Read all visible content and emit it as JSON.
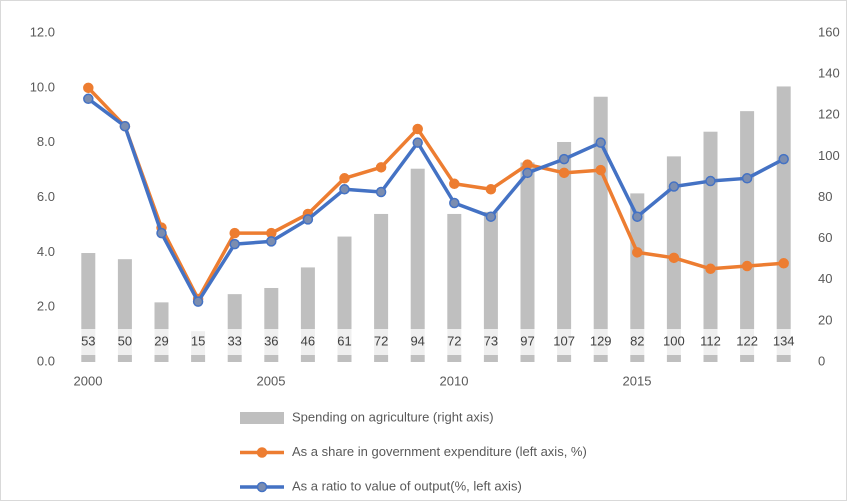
{
  "chart_data": {
    "type": "combo",
    "categories": [
      "2000",
      null,
      null,
      null,
      null,
      "2005",
      null,
      null,
      null,
      null,
      "2010",
      null,
      null,
      null,
      null,
      "2015",
      null,
      null,
      null,
      null
    ],
    "series": [
      {
        "name": "Spending on agriculture (right axis)",
        "type": "bar",
        "axis": "y2",
        "color": "#bfbfbf",
        "values": [
          53,
          50,
          29,
          15,
          33,
          36,
          46,
          61,
          72,
          94,
          72,
          73,
          97,
          107,
          129,
          82,
          100,
          112,
          122,
          134
        ]
      },
      {
        "name": "As a share in government expenditure (left axis, %)",
        "type": "line",
        "color": "#ed7d31",
        "values": [
          10.0,
          8.6,
          4.9,
          2.3,
          4.7,
          4.7,
          5.4,
          6.7,
          7.1,
          8.5,
          6.5,
          6.3,
          7.2,
          6.9,
          7.0,
          4.0,
          3.8,
          3.4,
          3.5,
          3.6
        ]
      },
      {
        "name": "As a ratio to value of output(%, left axis)",
        "type": "line",
        "color": "#4472c4",
        "values": [
          9.6,
          8.6,
          4.7,
          2.2,
          4.3,
          4.4,
          5.2,
          6.3,
          6.2,
          8.0,
          5.8,
          5.3,
          6.9,
          7.4,
          8.0,
          5.3,
          6.4,
          6.6,
          6.7,
          7.4
        ]
      }
    ],
    "ylim": [
      0,
      12
    ],
    "yticks": [
      {
        "value": 0,
        "label": "0.0"
      },
      {
        "value": 2,
        "label": "2.0"
      },
      {
        "value": 4,
        "label": "4.0"
      },
      {
        "value": 6,
        "label": "6.0"
      },
      {
        "value": 8,
        "label": "8.0"
      },
      {
        "value": 10,
        "label": "10.0"
      },
      {
        "value": 12,
        "label": "12.0"
      }
    ],
    "y2lim": [
      0,
      160
    ],
    "y2ticks": [
      0,
      20,
      40,
      60,
      80,
      100,
      120,
      140,
      160
    ],
    "grid": false,
    "legend": "bottom"
  }
}
